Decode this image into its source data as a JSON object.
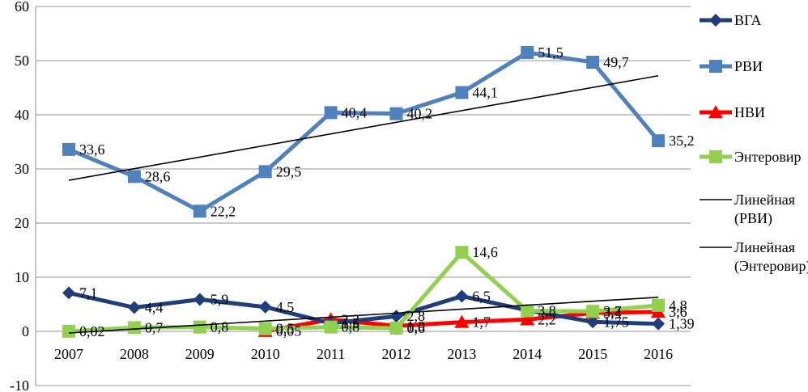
{
  "chart_data": {
    "type": "line",
    "title": "",
    "xlabel": "",
    "ylabel": "",
    "categories": [
      "2007",
      "2008",
      "2009",
      "2010",
      "2011",
      "2012",
      "2013",
      "2014",
      "2015",
      "2016"
    ],
    "ylim": [
      -10,
      60
    ],
    "yticks": [
      60,
      50,
      40,
      30,
      20,
      10,
      0,
      -10
    ],
    "grid": true,
    "legend_position": "right",
    "series": [
      {
        "name": "ВГА",
        "color": "#1F3D7A",
        "marker": "diamond",
        "values": [
          7.1,
          4.4,
          5.9,
          4.5,
          1.5,
          2.8,
          6.5,
          3.9,
          1.75,
          1.39
        ],
        "labels": [
          "7,1",
          "4,4",
          "5,9",
          "4,5",
          "1,5",
          "2,8",
          "6,5",
          "",
          "1,75",
          "1,39"
        ]
      },
      {
        "name": "РВИ",
        "color": "#4F81BD",
        "marker": "square",
        "values": [
          33.6,
          28.6,
          22.2,
          29.5,
          40.4,
          40.2,
          44.1,
          51.5,
          49.7,
          35.2
        ],
        "labels": [
          "33,6",
          "28,6",
          "22,2",
          "29,5",
          "40,4",
          "40,2",
          "44,1",
          "51,5",
          "49,7",
          "35,2"
        ]
      },
      {
        "name": "НВИ",
        "color": "#FF0000",
        "marker": "triangle",
        "values": [
          null,
          null,
          null,
          0.05,
          2.2,
          1.0,
          1.7,
          2.2,
          3.4,
          3.6
        ],
        "labels": [
          "",
          "",
          "",
          "0,05",
          "2,2",
          "1,0",
          "1,7",
          "2,2",
          "3,4",
          "3,6"
        ]
      },
      {
        "name": "Энтеровир",
        "color": "#92D050",
        "marker": "square",
        "values": [
          0.02,
          0.7,
          0.8,
          0.5,
          0.8,
          0.6,
          14.6,
          3.8,
          3.7,
          4.8
        ],
        "labels": [
          "0,02",
          "0,7",
          "0,8",
          "0,5",
          "0,8",
          "0,6",
          "14,6",
          "3,8",
          "3,7",
          "4,8"
        ]
      }
    ],
    "trendlines": [
      {
        "name": "Линейная (РВИ)",
        "of": "РВИ",
        "color": "#000000",
        "start": 27.9,
        "end": 47.2
      },
      {
        "name": "Линейная (Энтеровир)",
        "of": "Энтеровир",
        "color": "#000000",
        "start": -0.3,
        "end": 6.3
      }
    ],
    "legend": [
      {
        "label": "ВГА",
        "series": 0
      },
      {
        "label": "РВИ",
        "series": 1
      },
      {
        "label": "НВИ",
        "series": 2
      },
      {
        "label": "Энтеровир",
        "series": 3
      },
      {
        "label": "Линейная\n(РВИ)",
        "trend": 0
      },
      {
        "label": "Линейная\n(Энтеровир)",
        "trend": 1
      }
    ]
  }
}
